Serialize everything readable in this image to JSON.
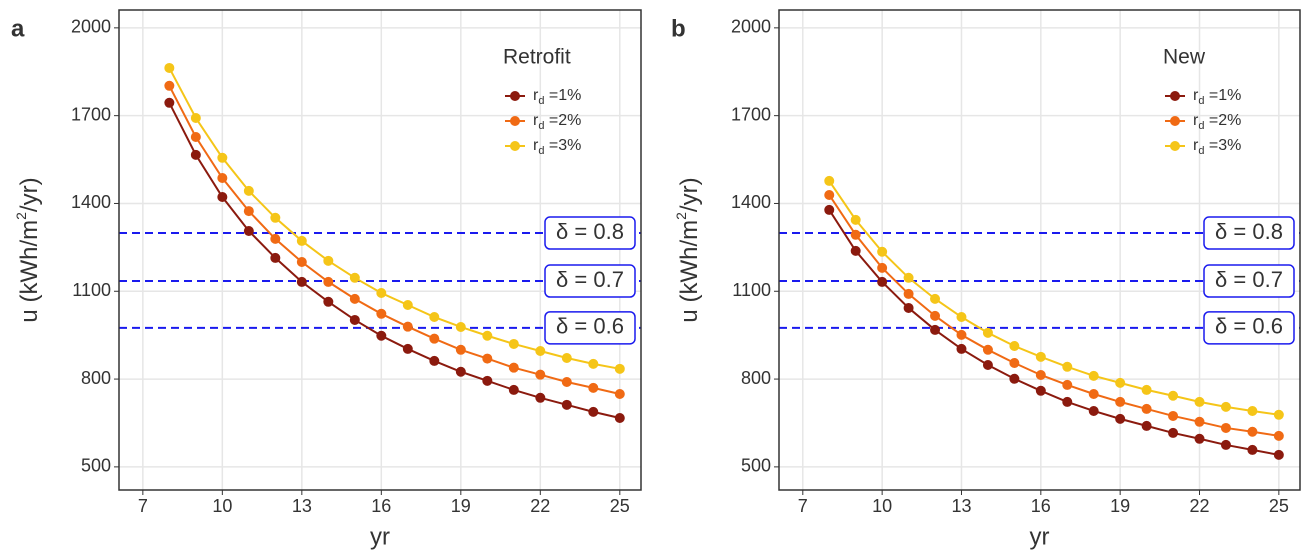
{
  "chart_data": [
    {
      "type": "line",
      "panel_label": "a",
      "legend_title": "Retrofit",
      "xlabel": "yr",
      "ylabel": "u (kWh/m2/yr)",
      "x": [
        8,
        9,
        10,
        11,
        12,
        13,
        14,
        15,
        16,
        17,
        18,
        19,
        20,
        21,
        22,
        23,
        24,
        25
      ],
      "series": [
        {
          "name": "rd =1%",
          "color": "#8b1a0e",
          "values": [
            1744,
            1566,
            1422,
            1306,
            1214,
            1132,
            1064,
            1002,
            948,
            903,
            862,
            825,
            794,
            763,
            736,
            712,
            688,
            667
          ]
        },
        {
          "name": "rd =2%",
          "color": "#f06a14",
          "values": [
            1802,
            1627,
            1487,
            1374,
            1279,
            1200,
            1132,
            1074,
            1023,
            979,
            938,
            900,
            870,
            839,
            815,
            790,
            770,
            749
          ]
        },
        {
          "name": "rd =3%",
          "color": "#f5c518",
          "values": [
            1863,
            1692,
            1556,
            1443,
            1351,
            1272,
            1204,
            1146,
            1094,
            1053,
            1012,
            978,
            948,
            920,
            896,
            872,
            852,
            835
          ]
        }
      ],
      "hlines": [
        {
          "label": "δ = 0.8",
          "value": 1299,
          "color": "#1a1aee"
        },
        {
          "label": "δ = 0.7",
          "value": 1135,
          "color": "#1a1aee"
        },
        {
          "label": "δ = 0.6",
          "value": 975,
          "color": "#1a1aee"
        }
      ],
      "xlim": [
        6.1,
        25.8
      ],
      "xticks": [
        7,
        10,
        13,
        16,
        19,
        22,
        25
      ],
      "ylim": [
        421,
        2061
      ],
      "yticks": [
        500,
        800,
        1100,
        1400,
        1700,
        2000
      ],
      "grid": true,
      "legend": "top-right"
    },
    {
      "type": "line",
      "panel_label": "b",
      "legend_title": "New",
      "xlabel": "yr",
      "ylabel": "u (kWh/m2/yr)",
      "x": [
        8,
        9,
        10,
        11,
        12,
        13,
        14,
        15,
        16,
        17,
        18,
        19,
        20,
        21,
        22,
        23,
        24,
        25
      ],
      "series": [
        {
          "name": "rd =1%",
          "color": "#8b1a0e",
          "values": [
            1378,
            1238,
            1132,
            1043,
            968,
            903,
            848,
            801,
            760,
            722,
            691,
            664,
            640,
            616,
            596,
            575,
            558,
            541
          ]
        },
        {
          "name": "rd =2%",
          "color": "#f06a14",
          "values": [
            1429,
            1293,
            1180,
            1091,
            1016,
            951,
            900,
            855,
            814,
            780,
            749,
            722,
            698,
            674,
            654,
            633,
            620,
            606
          ]
        },
        {
          "name": "rd =3%",
          "color": "#f5c518",
          "values": [
            1477,
            1344,
            1235,
            1146,
            1074,
            1012,
            958,
            913,
            876,
            842,
            811,
            787,
            763,
            743,
            722,
            705,
            691,
            678
          ]
        }
      ],
      "hlines": [
        {
          "label": "δ = 0.8",
          "value": 1299,
          "color": "#1a1aee"
        },
        {
          "label": "δ = 0.7",
          "value": 1135,
          "color": "#1a1aee"
        },
        {
          "label": "δ = 0.6",
          "value": 975,
          "color": "#1a1aee"
        }
      ],
      "xlim": [
        6.1,
        25.8
      ],
      "xticks": [
        7,
        10,
        13,
        16,
        19,
        22,
        25
      ],
      "ylim": [
        421,
        2061
      ],
      "yticks": [
        500,
        800,
        1100,
        1400,
        1700,
        2000
      ],
      "grid": true,
      "legend": "top-right"
    }
  ]
}
